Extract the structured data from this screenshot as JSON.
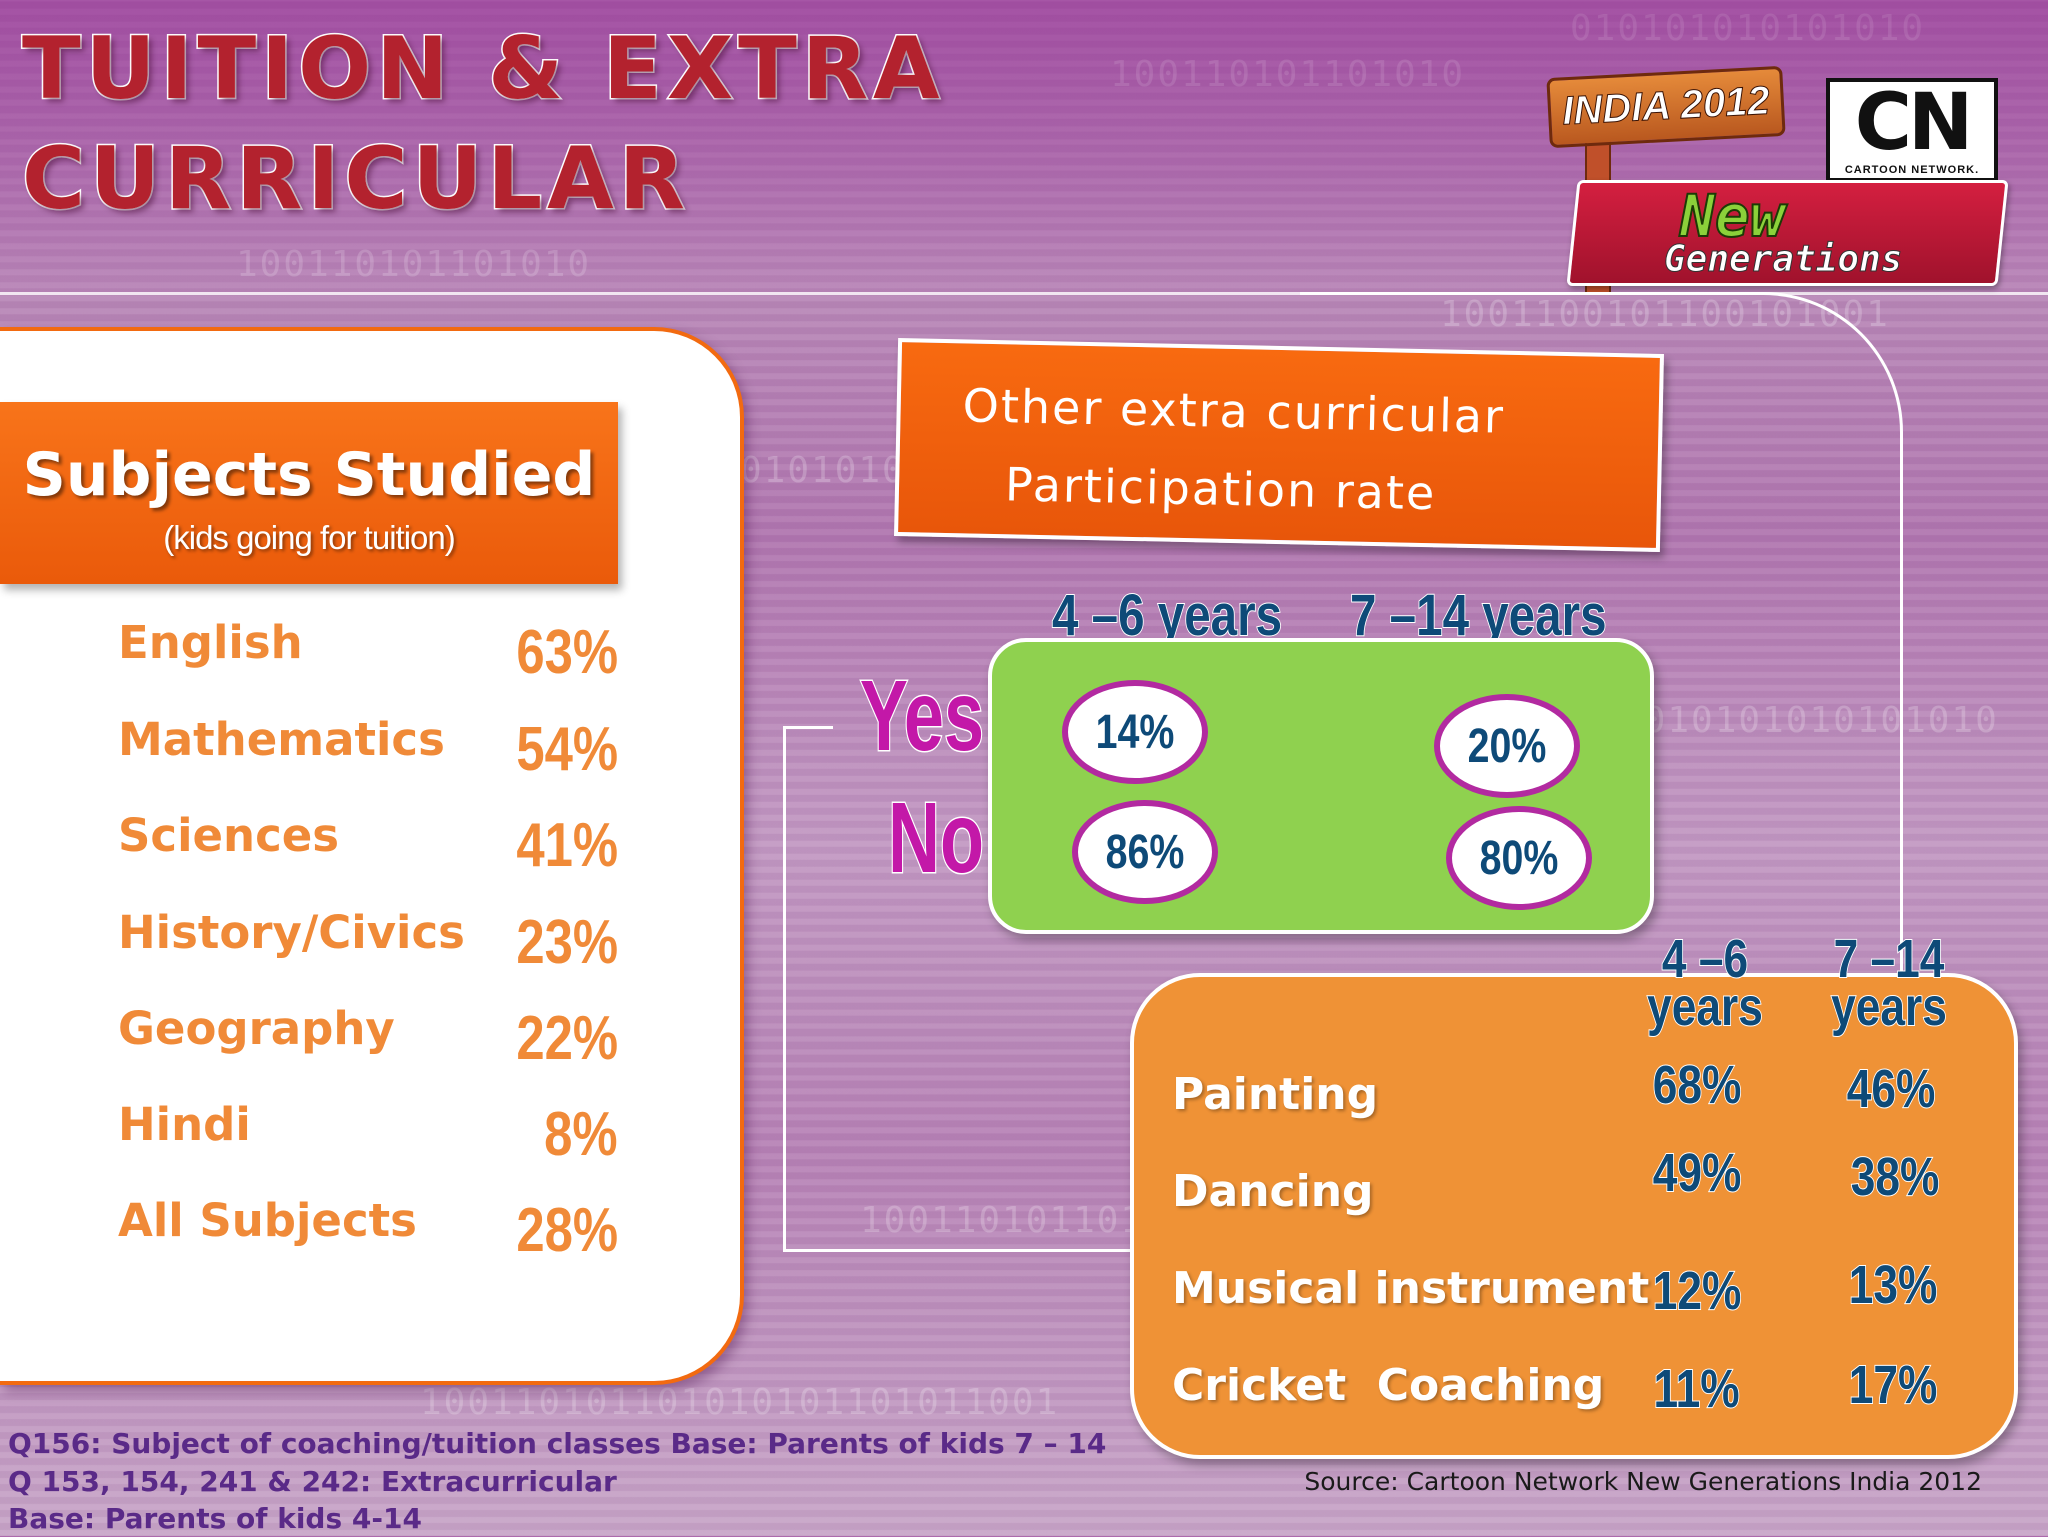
{
  "title": {
    "line1": "TUITION & EXTRA",
    "line2": "CURRICULAR"
  },
  "logos": {
    "india": "INDIA 2012",
    "cn_mark": "CN",
    "cn_name": "CARTOON NETWORK.",
    "newgen_1": "New",
    "newgen_2": "Generations"
  },
  "subjects": {
    "title": "Subjects Studied",
    "subtitle": "(kids going for tuition)",
    "items": [
      {
        "name": "English",
        "value": "63%"
      },
      {
        "name": "Mathematics",
        "value": "54%"
      },
      {
        "name": "Sciences",
        "value": "41%"
      },
      {
        "name": "History/Civics",
        "value": "23%"
      },
      {
        "name": "Geography",
        "value": "22%"
      },
      {
        "name": "Hindi",
        "value": "8%"
      },
      {
        "name": "All Subjects",
        "value": "28%"
      }
    ]
  },
  "participation": {
    "title_line1": "Other extra curricular",
    "title_line2": "Participation rate",
    "col1": "4 –6  years",
    "col2": "7 –14  years",
    "yes_label": "Yes",
    "no_label": "No",
    "yes": {
      "age_4_6": "14%",
      "age_7_14": "20%"
    },
    "no": {
      "age_4_6": "86%",
      "age_7_14": "80%"
    }
  },
  "activities": {
    "col1_line1": "4 –6",
    "col1_line2": "years",
    "col2_line1": "7 –14",
    "col2_line2": "years",
    "items": [
      {
        "name": "Painting",
        "age_4_6": "68%",
        "age_7_14": "46%"
      },
      {
        "name": "Dancing",
        "age_4_6": "49%",
        "age_7_14": "38%"
      },
      {
        "name": "Musical instrument",
        "age_4_6": "12%",
        "age_7_14": "13%"
      },
      {
        "name": "Cricket  Coaching",
        "age_4_6": "11%",
        "age_7_14": "17%"
      }
    ]
  },
  "footnotes": {
    "line1": "Q156: Subject of coaching/tuition classes Base: Parents of kids 7 – 14",
    "line2": "Q 153, 154, 241 & 242: Extracurricular",
    "line3": "Base: Parents of kids 4-14"
  },
  "source": "Source: Cartoon Network New Generations India 2012",
  "colors": {
    "accent_orange": "#f26a10",
    "subject_text": "#f08a38",
    "value_blue": "#0e4a78",
    "yes_no_magenta": "#c318a8",
    "green_box": "#8fd14f",
    "activity_panel": "#ef9236"
  }
}
